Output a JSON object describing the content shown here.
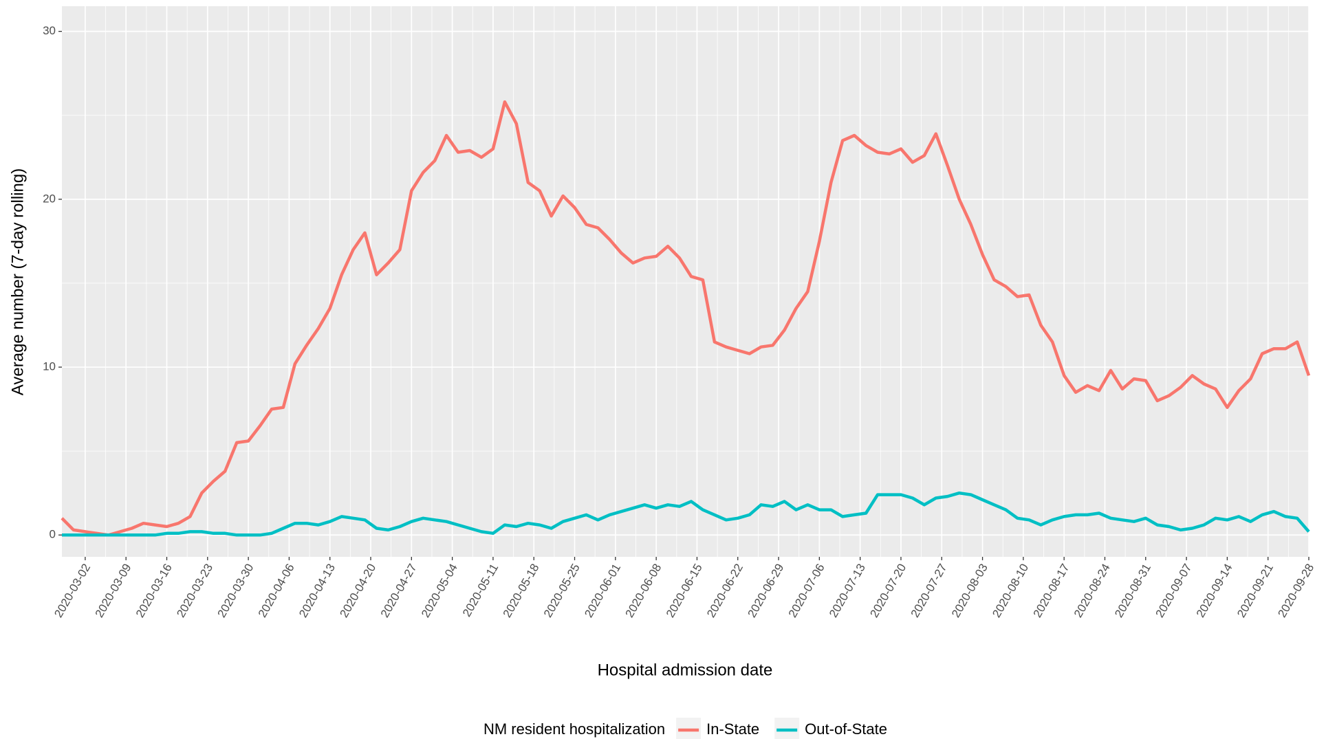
{
  "chart_data": {
    "type": "line",
    "x_label": "Hospital admission date",
    "y_label": "Average number (7-day rolling)",
    "legend_title": "NM resident hospitalization",
    "legend_position": "bottom",
    "grid": true,
    "x": [
      "2020-02-27",
      "2020-02-29",
      "2020-03-02",
      "2020-03-04",
      "2020-03-06",
      "2020-03-08",
      "2020-03-10",
      "2020-03-12",
      "2020-03-14",
      "2020-03-16",
      "2020-03-18",
      "2020-03-20",
      "2020-03-22",
      "2020-03-24",
      "2020-03-26",
      "2020-03-28",
      "2020-03-30",
      "2020-04-01",
      "2020-04-03",
      "2020-04-05",
      "2020-04-07",
      "2020-04-09",
      "2020-04-11",
      "2020-04-13",
      "2020-04-15",
      "2020-04-17",
      "2020-04-19",
      "2020-04-21",
      "2020-04-23",
      "2020-04-25",
      "2020-04-27",
      "2020-04-29",
      "2020-05-01",
      "2020-05-03",
      "2020-05-05",
      "2020-05-07",
      "2020-05-09",
      "2020-05-11",
      "2020-05-13",
      "2020-05-15",
      "2020-05-17",
      "2020-05-19",
      "2020-05-21",
      "2020-05-23",
      "2020-05-25",
      "2020-05-27",
      "2020-05-29",
      "2020-05-31",
      "2020-06-02",
      "2020-06-04",
      "2020-06-06",
      "2020-06-08",
      "2020-06-10",
      "2020-06-12",
      "2020-06-14",
      "2020-06-16",
      "2020-06-18",
      "2020-06-20",
      "2020-06-22",
      "2020-06-24",
      "2020-06-26",
      "2020-06-28",
      "2020-06-30",
      "2020-07-02",
      "2020-07-04",
      "2020-07-06",
      "2020-07-08",
      "2020-07-10",
      "2020-07-12",
      "2020-07-14",
      "2020-07-16",
      "2020-07-18",
      "2020-07-20",
      "2020-07-22",
      "2020-07-24",
      "2020-07-26",
      "2020-07-28",
      "2020-07-30",
      "2020-08-01",
      "2020-08-03",
      "2020-08-05",
      "2020-08-07",
      "2020-08-09",
      "2020-08-11",
      "2020-08-13",
      "2020-08-15",
      "2020-08-17",
      "2020-08-19",
      "2020-08-21",
      "2020-08-23",
      "2020-08-25",
      "2020-08-27",
      "2020-08-29",
      "2020-08-31",
      "2020-09-02",
      "2020-09-04",
      "2020-09-06",
      "2020-09-08",
      "2020-09-10",
      "2020-09-12",
      "2020-09-14",
      "2020-09-16",
      "2020-09-18",
      "2020-09-20",
      "2020-09-22",
      "2020-09-24",
      "2020-09-26",
      "2020-09-28"
    ],
    "series": [
      {
        "name": "In-State",
        "color": "#f8766d",
        "values": [
          1.0,
          0.3,
          0.2,
          0.1,
          0.0,
          0.2,
          0.4,
          0.7,
          0.6,
          0.5,
          0.7,
          1.1,
          2.5,
          3.2,
          3.8,
          5.5,
          5.6,
          6.5,
          7.5,
          7.6,
          10.2,
          11.3,
          12.3,
          13.5,
          15.5,
          17.0,
          18.0,
          15.5,
          16.2,
          17.0,
          20.5,
          21.6,
          22.3,
          23.8,
          22.8,
          22.9,
          22.5,
          23.0,
          25.8,
          24.5,
          21.0,
          20.5,
          19.0,
          20.2,
          19.5,
          18.5,
          18.3,
          17.6,
          16.8,
          16.2,
          16.5,
          16.6,
          17.2,
          16.5,
          15.4,
          15.2,
          11.5,
          11.2,
          11.0,
          10.8,
          11.2,
          11.3,
          12.2,
          13.5,
          14.5,
          17.5,
          21.0,
          23.5,
          23.8,
          23.2,
          22.8,
          22.7,
          23.0,
          22.2,
          22.6,
          23.9,
          22.0,
          20.0,
          18.5,
          16.7,
          15.2,
          14.8,
          14.2,
          14.3,
          12.5,
          11.5,
          9.5,
          8.5,
          8.9,
          8.6,
          9.8,
          8.7,
          9.3,
          9.2,
          8.0,
          8.3,
          8.8,
          9.5,
          9.0,
          8.7,
          7.6,
          8.6,
          9.3,
          10.8,
          11.1,
          11.1,
          11.5,
          9.5
        ]
      },
      {
        "name": "Out-of-State",
        "color": "#00bfc4",
        "values": [
          0,
          0,
          0,
          0,
          0,
          0,
          0,
          0,
          0,
          0.1,
          0.1,
          0.2,
          0.2,
          0.1,
          0.1,
          0,
          0,
          0,
          0.1,
          0.4,
          0.7,
          0.7,
          0.6,
          0.8,
          1.1,
          1.0,
          0.9,
          0.4,
          0.3,
          0.5,
          0.8,
          1.0,
          0.9,
          0.8,
          0.6,
          0.4,
          0.2,
          0.1,
          0.6,
          0.5,
          0.7,
          0.6,
          0.4,
          0.8,
          1.0,
          1.2,
          0.9,
          1.2,
          1.4,
          1.6,
          1.8,
          1.6,
          1.8,
          1.7,
          2.0,
          1.5,
          1.2,
          0.9,
          1.0,
          1.2,
          1.8,
          1.7,
          2.0,
          1.5,
          1.8,
          1.5,
          1.5,
          1.1,
          1.2,
          1.3,
          2.4,
          2.4,
          2.4,
          2.2,
          1.8,
          2.2,
          2.3,
          2.5,
          2.4,
          2.1,
          1.8,
          1.5,
          1.0,
          0.9,
          0.6,
          0.9,
          1.1,
          1.2,
          1.2,
          1.3,
          1.0,
          0.9,
          0.8,
          1.0,
          0.6,
          0.5,
          0.3,
          0.4,
          0.6,
          1.0,
          0.9,
          1.1,
          0.8,
          1.2,
          1.4,
          1.1,
          1.0,
          0.2
        ]
      }
    ],
    "xlim": [
      "2020-02-27",
      "2020-09-28"
    ],
    "xticks": [
      "2020-03-02",
      "2020-03-09",
      "2020-03-16",
      "2020-03-23",
      "2020-03-30",
      "2020-04-06",
      "2020-04-13",
      "2020-04-20",
      "2020-04-27",
      "2020-05-04",
      "2020-05-11",
      "2020-05-18",
      "2020-05-25",
      "2020-06-01",
      "2020-06-08",
      "2020-06-15",
      "2020-06-22",
      "2020-06-29",
      "2020-07-06",
      "2020-07-13",
      "2020-07-20",
      "2020-07-27",
      "2020-08-03",
      "2020-08-10",
      "2020-08-17",
      "2020-08-24",
      "2020-08-31",
      "2020-09-07",
      "2020-09-14",
      "2020-09-21",
      "2020-09-28"
    ],
    "ylim": [
      -1.3,
      31.5
    ],
    "yticks": [
      0,
      10,
      20,
      30
    ]
  }
}
